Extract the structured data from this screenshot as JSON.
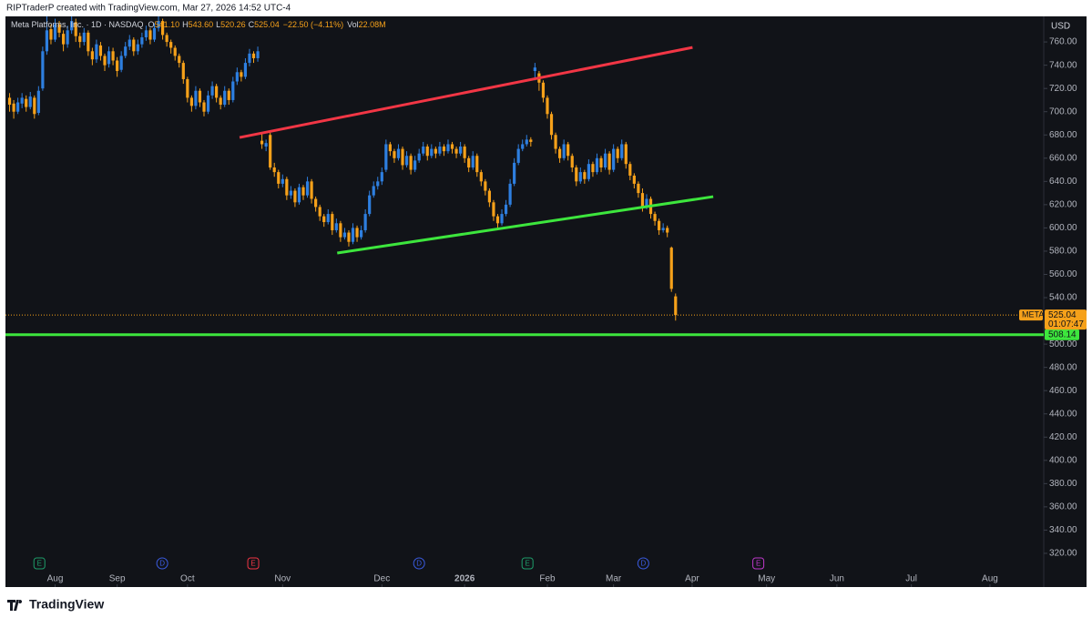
{
  "credit": "RIPTraderP created with TradingView.com, Mar 27, 2026 14:52 UTC-4",
  "brand": "TradingView",
  "chart_data": {
    "type": "candlestick",
    "legend": {
      "symbol": "Meta Platforms, Inc. · 1D · NASDAQ",
      "fields": [
        {
          "key": "O",
          "value": "541.10"
        },
        {
          "key": "H",
          "value": "543.60"
        },
        {
          "key": "L",
          "value": "520.26"
        },
        {
          "key": "C",
          "value": "525.04"
        }
      ],
      "change": "−22.50 (−4.11%)",
      "volume_key": "Vol",
      "volume": "22.08M"
    },
    "currency": "USD",
    "up_color": "#2e7fe0",
    "down_color": "#f6a11a",
    "ohlc": [
      [
        712,
        716,
        700,
        706
      ],
      [
        707,
        710,
        694,
        700
      ],
      [
        700,
        712,
        698,
        708
      ],
      [
        707,
        716,
        703,
        712
      ],
      [
        711,
        714,
        700,
        704
      ],
      [
        704,
        717,
        702,
        713
      ],
      [
        712,
        714,
        694,
        698
      ],
      [
        699,
        722,
        697,
        718
      ],
      [
        720,
        756,
        718,
        752
      ],
      [
        752,
        782,
        749,
        770
      ],
      [
        771,
        775,
        758,
        762
      ],
      [
        762,
        780,
        760,
        775
      ],
      [
        775,
        778,
        764,
        768
      ],
      [
        767,
        770,
        752,
        758
      ],
      [
        758,
        774,
        755,
        770
      ],
      [
        770,
        782,
        767,
        778
      ],
      [
        777,
        780,
        760,
        765
      ],
      [
        765,
        768,
        755,
        760
      ],
      [
        760,
        772,
        757,
        768
      ],
      [
        768,
        770,
        748,
        752
      ],
      [
        752,
        755,
        740,
        745
      ],
      [
        745,
        762,
        742,
        758
      ],
      [
        757,
        760,
        744,
        748
      ],
      [
        748,
        750,
        735,
        740
      ],
      [
        741,
        756,
        738,
        752
      ],
      [
        752,
        755,
        740,
        744
      ],
      [
        744,
        747,
        730,
        735
      ],
      [
        736,
        752,
        734,
        748
      ],
      [
        748,
        760,
        746,
        756
      ],
      [
        756,
        766,
        753,
        762
      ],
      [
        762,
        764,
        748,
        752
      ],
      [
        752,
        762,
        749,
        758
      ],
      [
        758,
        768,
        755,
        764
      ],
      [
        764,
        774,
        761,
        770
      ],
      [
        770,
        772,
        758,
        762
      ],
      [
        762,
        776,
        760,
        772
      ],
      [
        772,
        784,
        769,
        778
      ],
      [
        778,
        780,
        762,
        766
      ],
      [
        766,
        768,
        756,
        760
      ],
      [
        760,
        762,
        750,
        755
      ],
      [
        755,
        757,
        744,
        748
      ],
      [
        748,
        750,
        738,
        742
      ],
      [
        742,
        744,
        724,
        728
      ],
      [
        728,
        730,
        708,
        712
      ],
      [
        712,
        714,
        700,
        705
      ],
      [
        705,
        722,
        702,
        718
      ],
      [
        718,
        720,
        704,
        708
      ],
      [
        708,
        710,
        696,
        700
      ],
      [
        700,
        718,
        698,
        714
      ],
      [
        714,
        726,
        711,
        722
      ],
      [
        722,
        724,
        708,
        712
      ],
      [
        712,
        714,
        702,
        706
      ],
      [
        706,
        722,
        704,
        718
      ],
      [
        718,
        720,
        706,
        710
      ],
      [
        710,
        730,
        708,
        726
      ],
      [
        726,
        738,
        723,
        734
      ],
      [
        734,
        736,
        726,
        730
      ],
      [
        730,
        746,
        728,
        742
      ],
      [
        742,
        754,
        739,
        750
      ],
      [
        750,
        752,
        742,
        746
      ],
      [
        746,
        756,
        743,
        752
      ],
      [
        675,
        682,
        668,
        672
      ],
      [
        670,
        676,
        666,
        673
      ],
      [
        680,
        682,
        650,
        652
      ],
      [
        652,
        656,
        644,
        648
      ],
      [
        648,
        650,
        634,
        638
      ],
      [
        638,
        646,
        635,
        642
      ],
      [
        642,
        644,
        624,
        628
      ],
      [
        628,
        636,
        625,
        632
      ],
      [
        632,
        634,
        618,
        622
      ],
      [
        622,
        638,
        620,
        635
      ],
      [
        635,
        637,
        624,
        628
      ],
      [
        628,
        644,
        626,
        640
      ],
      [
        640,
        642,
        621,
        625
      ],
      [
        625,
        627,
        614,
        618
      ],
      [
        618,
        620,
        606,
        610
      ],
      [
        610,
        612,
        601,
        605
      ],
      [
        605,
        616,
        603,
        612
      ],
      [
        612,
        614,
        594,
        598
      ],
      [
        598,
        608,
        596,
        604
      ],
      [
        604,
        606,
        588,
        592
      ],
      [
        592,
        600,
        590,
        596
      ],
      [
        596,
        598,
        584,
        588
      ],
      [
        588,
        604,
        586,
        600
      ],
      [
        600,
        602,
        588,
        592
      ],
      [
        592,
        602,
        590,
        598
      ],
      [
        598,
        616,
        596,
        612
      ],
      [
        612,
        632,
        610,
        628
      ],
      [
        628,
        640,
        626,
        636
      ],
      [
        636,
        644,
        633,
        640
      ],
      [
        640,
        652,
        637,
        648
      ],
      [
        650,
        676,
        648,
        672
      ],
      [
        672,
        674,
        662,
        666
      ],
      [
        666,
        668,
        656,
        660
      ],
      [
        660,
        672,
        658,
        668
      ],
      [
        668,
        670,
        650,
        654
      ],
      [
        654,
        666,
        652,
        662
      ],
      [
        662,
        664,
        646,
        650
      ],
      [
        650,
        662,
        648,
        658
      ],
      [
        658,
        668,
        656,
        664
      ],
      [
        664,
        674,
        662,
        670
      ],
      [
        670,
        672,
        658,
        662
      ],
      [
        662,
        672,
        660,
        668
      ],
      [
        668,
        670,
        660,
        664
      ],
      [
        664,
        674,
        662,
        670
      ],
      [
        670,
        672,
        662,
        666
      ],
      [
        666,
        676,
        664,
        672
      ],
      [
        672,
        674,
        664,
        668
      ],
      [
        668,
        670,
        660,
        664
      ],
      [
        664,
        674,
        662,
        670
      ],
      [
        670,
        672,
        656,
        660
      ],
      [
        660,
        662,
        648,
        652
      ],
      [
        652,
        666,
        650,
        662
      ],
      [
        662,
        664,
        644,
        648
      ],
      [
        648,
        650,
        636,
        640
      ],
      [
        640,
        642,
        628,
        632
      ],
      [
        632,
        634,
        618,
        622
      ],
      [
        622,
        624,
        606,
        610
      ],
      [
        610,
        612,
        600,
        604
      ],
      [
        604,
        616,
        602,
        612
      ],
      [
        612,
        624,
        610,
        620
      ],
      [
        620,
        642,
        618,
        638
      ],
      [
        638,
        660,
        636,
        656
      ],
      [
        656,
        672,
        654,
        668
      ],
      [
        668,
        676,
        666,
        672
      ],
      [
        672,
        680,
        670,
        676
      ],
      [
        676,
        678,
        670,
        674
      ],
      [
        735,
        742,
        727,
        738
      ],
      [
        733,
        735,
        718,
        725
      ],
      [
        725,
        727,
        708,
        712
      ],
      [
        712,
        714,
        694,
        698
      ],
      [
        698,
        700,
        676,
        680
      ],
      [
        680,
        682,
        664,
        668
      ],
      [
        668,
        670,
        656,
        660
      ],
      [
        660,
        676,
        658,
        672
      ],
      [
        672,
        674,
        658,
        662
      ],
      [
        662,
        664,
        648,
        652
      ],
      [
        652,
        654,
        636,
        640
      ],
      [
        640,
        652,
        638,
        648
      ],
      [
        648,
        650,
        638,
        642
      ],
      [
        642,
        659,
        640,
        655
      ],
      [
        655,
        657,
        644,
        648
      ],
      [
        648,
        664,
        646,
        660
      ],
      [
        660,
        662,
        648,
        652
      ],
      [
        652,
        668,
        650,
        664
      ],
      [
        664,
        666,
        646,
        650
      ],
      [
        650,
        672,
        648,
        668
      ],
      [
        668,
        670,
        656,
        660
      ],
      [
        660,
        676,
        658,
        672
      ],
      [
        672,
        674,
        651,
        655
      ],
      [
        655,
        657,
        641,
        645
      ],
      [
        645,
        647,
        634,
        638
      ],
      [
        638,
        640,
        626,
        630
      ],
      [
        630,
        634,
        614,
        618
      ],
      [
        618,
        629,
        616,
        625
      ],
      [
        625,
        627,
        608,
        612
      ],
      [
        612,
        614,
        602,
        606
      ],
      [
        606,
        608,
        594,
        598
      ],
      [
        598,
        604,
        596,
        600
      ],
      [
        600,
        602,
        592,
        596
      ],
      [
        583,
        584,
        545,
        547.54
      ],
      [
        541.1,
        543.6,
        520.26,
        525.04
      ]
    ],
    "xlim": [
      -1,
      250
    ],
    "xticks": [
      {
        "value": 11,
        "label": "Aug"
      },
      {
        "value": 26,
        "label": "Sep"
      },
      {
        "value": 43,
        "label": "Oct"
      },
      {
        "value": 66,
        "label": "Nov"
      },
      {
        "value": 90,
        "label": "Dec"
      },
      {
        "value": 110,
        "label": "2026"
      },
      {
        "value": 130,
        "label": "Feb"
      },
      {
        "value": 146,
        "label": "Mar"
      },
      {
        "value": 165,
        "label": "Apr"
      },
      {
        "value": 183,
        "label": "May"
      },
      {
        "value": 200,
        "label": "Jun"
      },
      {
        "value": 218,
        "label": "Jul"
      },
      {
        "value": 237,
        "label": "Aug"
      }
    ],
    "ylim": [
      291,
      782
    ],
    "yticks": [
      {
        "value": 760,
        "label": "760.00"
      },
      {
        "value": 740,
        "label": "740.00"
      },
      {
        "value": 720,
        "label": "720.00"
      },
      {
        "value": 700,
        "label": "700.00"
      },
      {
        "value": 680,
        "label": "680.00"
      },
      {
        "value": 660,
        "label": "660.00"
      },
      {
        "value": 640,
        "label": "640.00"
      },
      {
        "value": 620,
        "label": "620.00"
      },
      {
        "value": 600,
        "label": "600.00"
      },
      {
        "value": 580,
        "label": "580.00"
      },
      {
        "value": 560,
        "label": "560.00"
      },
      {
        "value": 540,
        "label": "540.00"
      },
      {
        "value": 500,
        "label": "500.00"
      },
      {
        "value": 480,
        "label": "480.00"
      },
      {
        "value": 460,
        "label": "460.00"
      },
      {
        "value": 440,
        "label": "440.00"
      },
      {
        "value": 420,
        "label": "420.00"
      },
      {
        "value": 400,
        "label": "400.00"
      },
      {
        "value": 380,
        "label": "380.00"
      },
      {
        "value": 360,
        "label": "360.00"
      },
      {
        "value": 340,
        "label": "340.00"
      },
      {
        "value": 320,
        "label": "320.00"
      }
    ],
    "last_price": {
      "symbol": "META",
      "value": 525.04,
      "countdown": "01:07:47",
      "color": "#f6a11a"
    },
    "hlines": [
      {
        "value": 508.14,
        "color": "#3de63d"
      }
    ],
    "trendlines": [
      {
        "color": "#f23645",
        "points": [
          [
            55.6,
            677.8
          ],
          [
            165.1,
            755.3
          ]
        ]
      },
      {
        "color": "#3de63d",
        "points": [
          [
            79.2,
            578.4
          ],
          [
            170.1,
            626.9
          ]
        ]
      }
    ],
    "events": [
      {
        "x": 7.2,
        "label": "E",
        "color": "#1e9e6a"
      },
      {
        "x": 36.9,
        "label": "D",
        "color": "#3a5be0"
      },
      {
        "x": 58.9,
        "label": "E",
        "color": "#f23645"
      },
      {
        "x": 99,
        "label": "D",
        "color": "#3a5be0"
      },
      {
        "x": 125.2,
        "label": "E",
        "color": "#1e9e6a"
      },
      {
        "x": 153.2,
        "label": "D",
        "color": "#3a5be0"
      },
      {
        "x": 181,
        "label": "E",
        "color": "#c038cc"
      }
    ]
  }
}
